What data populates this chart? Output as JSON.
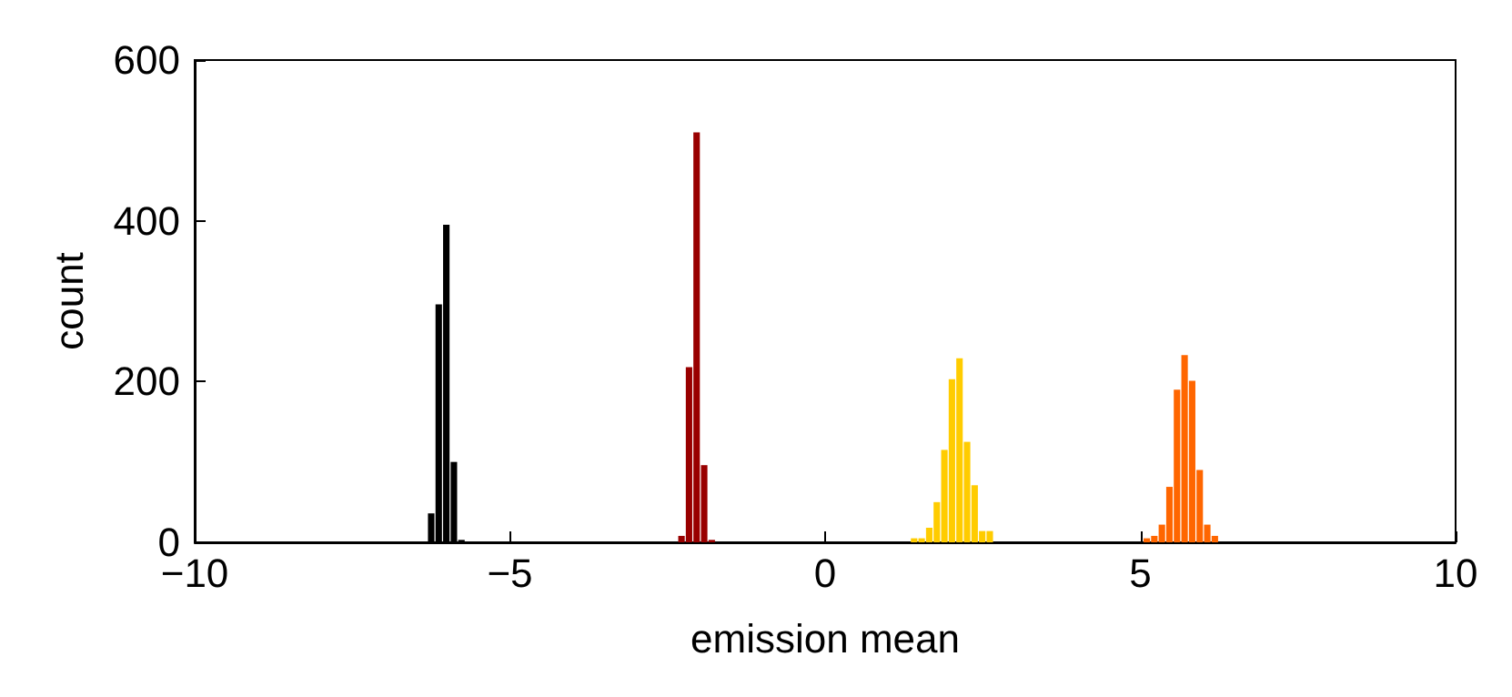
{
  "chart_data": {
    "type": "bar",
    "xlabel": "emission mean",
    "ylabel": "count",
    "xlim": [
      -10,
      10
    ],
    "xticks": [
      -10,
      -5,
      0,
      5,
      10
    ],
    "ylim": [
      0,
      600
    ],
    "yticks": [
      0,
      200,
      400,
      600
    ],
    "grid": false,
    "series": [
      {
        "color": "#000000",
        "x": [
          -6.24,
          -6.12,
          -6.0,
          -5.88,
          -5.76
        ],
        "values": [
          36,
          296,
          395,
          100,
          3
        ]
      },
      {
        "color": "#990000",
        "x": [
          -2.27,
          -2.15,
          -2.03,
          -1.91,
          -1.79
        ],
        "values": [
          8,
          218,
          510,
          96,
          3
        ]
      },
      {
        "color": "#ffcc00",
        "x": [
          1.42,
          1.54,
          1.66,
          1.78,
          1.9,
          2.02,
          2.14,
          2.26,
          2.38,
          2.5,
          2.62
        ],
        "values": [
          5,
          5,
          18,
          50,
          115,
          203,
          229,
          125,
          71,
          14,
          14
        ]
      },
      {
        "color": "#ff6600",
        "x": [
          5.11,
          5.23,
          5.35,
          5.47,
          5.59,
          5.71,
          5.83,
          5.95,
          6.07,
          6.19
        ],
        "values": [
          5,
          8,
          22,
          69,
          190,
          233,
          201,
          90,
          22,
          8
        ]
      }
    ]
  }
}
